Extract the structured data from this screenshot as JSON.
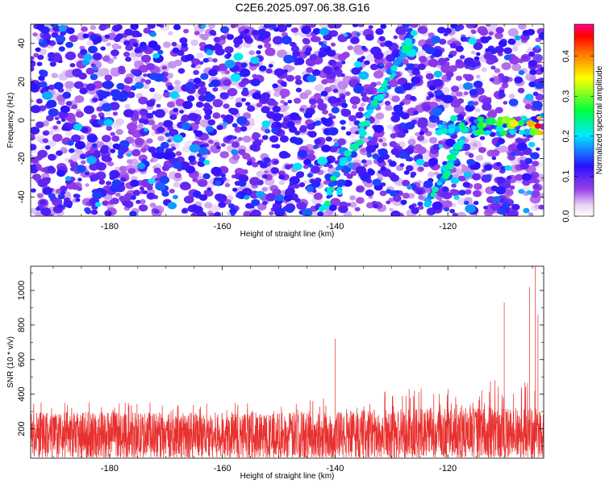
{
  "title": "C2E6.2025.097.06.38.G16",
  "chart_data": [
    {
      "type": "heatmap",
      "xlabel": "Height of straight line (km)",
      "ylabel": "Frequency (Hz)",
      "xlim": [
        -194,
        -103
      ],
      "ylim": [
        -50,
        50
      ],
      "xticks": [
        -180,
        -160,
        -140,
        -120
      ],
      "yticks": [
        -40,
        -20,
        0,
        20,
        40
      ],
      "colorbar": {
        "label": "Normalized spectral amplitude",
        "range": [
          0,
          0.48
        ],
        "ticks": [
          0.0,
          0.1,
          0.2,
          0.3,
          0.4
        ],
        "tick_labels": [
          "0.0",
          "0.1",
          "0.2",
          "0.3",
          "0.4"
        ],
        "colormap": [
          "#ffffff",
          "#8a2be2",
          "#0000ff",
          "#00ffff",
          "#00ff00",
          "#ffff00",
          "#ff8000",
          "#ff0000",
          "#ff0090"
        ]
      },
      "features": [
        {
          "name": "diagonal-ridge",
          "points": [
            [
              -142,
              -47
            ],
            [
              -140,
              -30
            ],
            [
              -136,
              -12
            ],
            [
              -133,
              8
            ],
            [
              -131,
              18
            ],
            [
              -128,
              35
            ],
            [
              -126,
              45
            ]
          ]
        },
        {
          "name": "lower-branch",
          "points": [
            [
              -124,
              -45
            ],
            [
              -121,
              -30
            ],
            [
              -119,
              -18
            ],
            [
              -117,
              -10
            ]
          ]
        },
        {
          "name": "horizontal-band",
          "x": [
            -122,
            -103
          ],
          "y": -3,
          "peak_amplitude": 0.45
        }
      ]
    },
    {
      "type": "line",
      "xlabel": "Height of straight line (km)",
      "ylabel": "SNR (10 * v/v)",
      "xlim": [
        -194,
        -103
      ],
      "ylim": [
        30,
        1140
      ],
      "xticks": [
        -180,
        -160,
        -140,
        -120
      ],
      "yticks": [
        200,
        400,
        600,
        800,
        1000
      ],
      "color": "#e8302e",
      "baseline_level": 200,
      "peaks": [
        [
          -140,
          720
        ],
        [
          -110,
          930
        ],
        [
          -105.5,
          1020
        ],
        [
          -104.5,
          1140
        ],
        [
          -104,
          860
        ]
      ]
    }
  ]
}
